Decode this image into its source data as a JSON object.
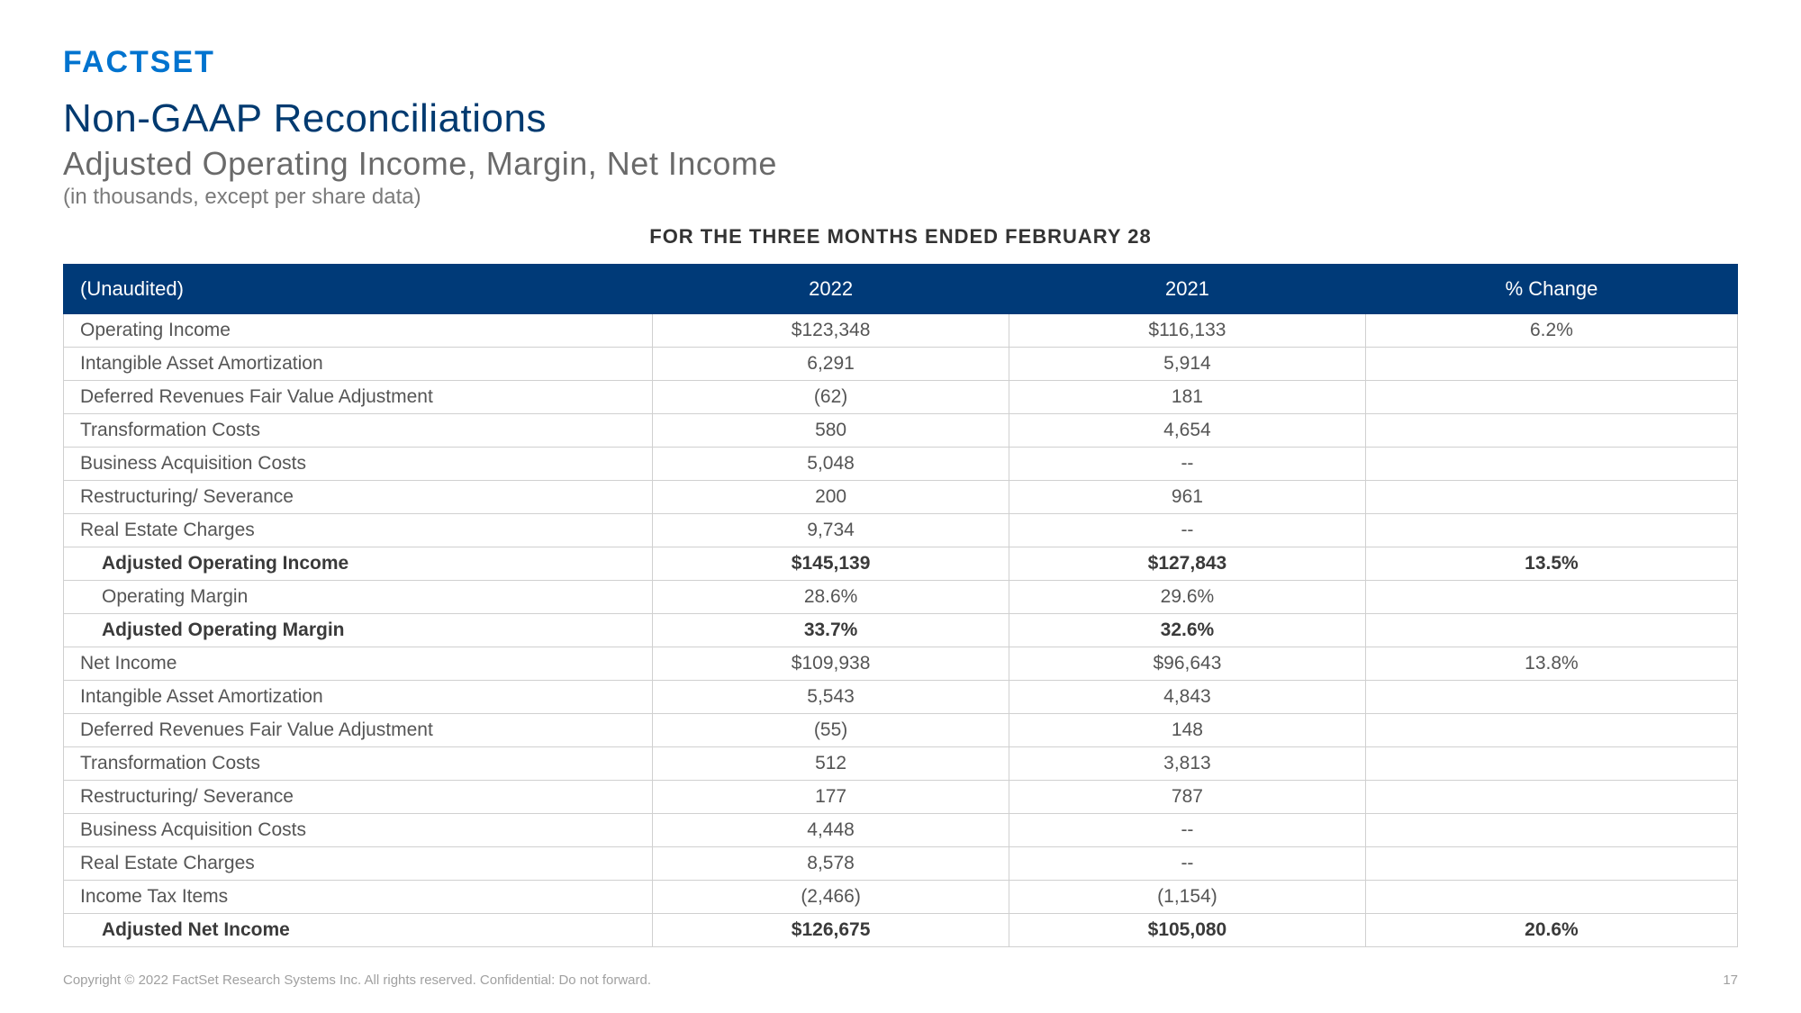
{
  "logo_text": "FACTSET",
  "title": "Non-GAAP Reconciliations",
  "subtitle": "Adjusted Operating Income, Margin, Net Income",
  "note": "(in thousands, except per share data)",
  "period_heading": "FOR THE THREE MONTHS ENDED FEBRUARY 28",
  "columns": {
    "unaudited": "(Unaudited)",
    "y2022": "2022",
    "y2021": "2021",
    "change": "% Change"
  },
  "rows": [
    {
      "label": "Operating Income",
      "v2022": "$123,348",
      "v2021": "$116,133",
      "change": "6.2%",
      "indent": false,
      "bold": false
    },
    {
      "label": "Intangible Asset Amortization",
      "v2022": "6,291",
      "v2021": "5,914",
      "change": "",
      "indent": false,
      "bold": false
    },
    {
      "label": "Deferred Revenues Fair Value Adjustment",
      "v2022": "(62)",
      "v2021": "181",
      "change": "",
      "indent": false,
      "bold": false
    },
    {
      "label": "Transformation Costs",
      "v2022": "580",
      "v2021": "4,654",
      "change": "",
      "indent": false,
      "bold": false
    },
    {
      "label": "Business Acquisition Costs",
      "v2022": "5,048",
      "v2021": "--",
      "change": "",
      "indent": false,
      "bold": false
    },
    {
      "label": "Restructuring/ Severance",
      "v2022": "200",
      "v2021": "961",
      "change": "",
      "indent": false,
      "bold": false
    },
    {
      "label": "Real Estate Charges",
      "v2022": "9,734",
      "v2021": "--",
      "change": "",
      "indent": false,
      "bold": false
    },
    {
      "label": "Adjusted Operating Income",
      "v2022": "$145,139",
      "v2021": "$127,843",
      "change": "13.5%",
      "indent": true,
      "bold": true
    },
    {
      "label": "Operating Margin",
      "v2022": "28.6%",
      "v2021": "29.6%",
      "change": "",
      "indent": true,
      "bold": false
    },
    {
      "label": "Adjusted Operating Margin",
      "v2022": "33.7%",
      "v2021": "32.6%",
      "change": "",
      "indent": true,
      "bold": true
    },
    {
      "label": "Net Income",
      "v2022": "$109,938",
      "v2021": "$96,643",
      "change": "13.8%",
      "indent": false,
      "bold": false
    },
    {
      "label": "Intangible Asset Amortization",
      "v2022": "5,543",
      "v2021": "4,843",
      "change": "",
      "indent": false,
      "bold": false
    },
    {
      "label": "Deferred Revenues Fair Value Adjustment",
      "v2022": "(55)",
      "v2021": "148",
      "change": "",
      "indent": false,
      "bold": false
    },
    {
      "label": "Transformation Costs",
      "v2022": "512",
      "v2021": "3,813",
      "change": "",
      "indent": false,
      "bold": false
    },
    {
      "label": "Restructuring/ Severance",
      "v2022": "177",
      "v2021": "787",
      "change": "",
      "indent": false,
      "bold": false
    },
    {
      "label": "Business Acquisition Costs",
      "v2022": "4,448",
      "v2021": "--",
      "change": "",
      "indent": false,
      "bold": false
    },
    {
      "label": "Real Estate Charges",
      "v2022": "8,578",
      "v2021": "--",
      "change": "",
      "indent": false,
      "bold": false
    },
    {
      "label": "Income Tax Items",
      "v2022": "(2,466)",
      "v2021": "(1,154)",
      "change": "",
      "indent": false,
      "bold": false
    },
    {
      "label": "Adjusted Net Income",
      "v2022": "$126,675",
      "v2021": "$105,080",
      "change": "20.6%",
      "indent": true,
      "bold": true
    }
  ],
  "footer_copyright": "Copyright © 2022 FactSet Research Systems Inc. All rights reserved. Confidential: Do not forward.",
  "footer_page": "17",
  "colors": {
    "brand_blue": "#0073cf",
    "title_navy": "#003a70",
    "header_bg": "#003a78",
    "border": "#d0d0d0",
    "text": "#555555",
    "muted": "#a0a0a0"
  }
}
